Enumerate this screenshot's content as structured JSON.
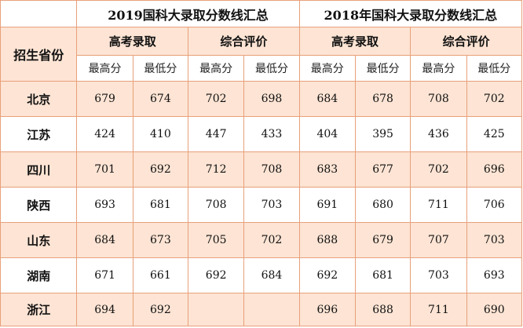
{
  "header": {
    "year_2019": "2019国科大录取分数线汇总",
    "year_2018": "2018年国科大录取分数线汇总",
    "row_header": "招生省份",
    "gaokao": "高考录取",
    "zonghe": "综合评价",
    "max": "最高分",
    "min": "最低分"
  },
  "rows": [
    {
      "province": "北京",
      "values": [
        "679",
        "674",
        "702",
        "698",
        "684",
        "678",
        "708",
        "702"
      ]
    },
    {
      "province": "江苏",
      "values": [
        "424",
        "410",
        "447",
        "433",
        "404",
        "395",
        "436",
        "425"
      ]
    },
    {
      "province": "四川",
      "values": [
        "701",
        "692",
        "712",
        "708",
        "683",
        "677",
        "702",
        "696"
      ]
    },
    {
      "province": "陕西",
      "values": [
        "693",
        "681",
        "708",
        "703",
        "691",
        "680",
        "711",
        "706"
      ]
    },
    {
      "province": "山东",
      "values": [
        "684",
        "673",
        "705",
        "702",
        "688",
        "679",
        "707",
        "703"
      ]
    },
    {
      "province": "湖南",
      "values": [
        "671",
        "661",
        "692",
        "684",
        "692",
        "681",
        "703",
        "693"
      ]
    },
    {
      "province": "浙江",
      "values": [
        "694",
        "692",
        "",
        "",
        "696",
        "688",
        "711",
        "690"
      ]
    }
  ],
  "colors": {
    "border": "#e8a07a",
    "shade": "#fde4d4"
  }
}
